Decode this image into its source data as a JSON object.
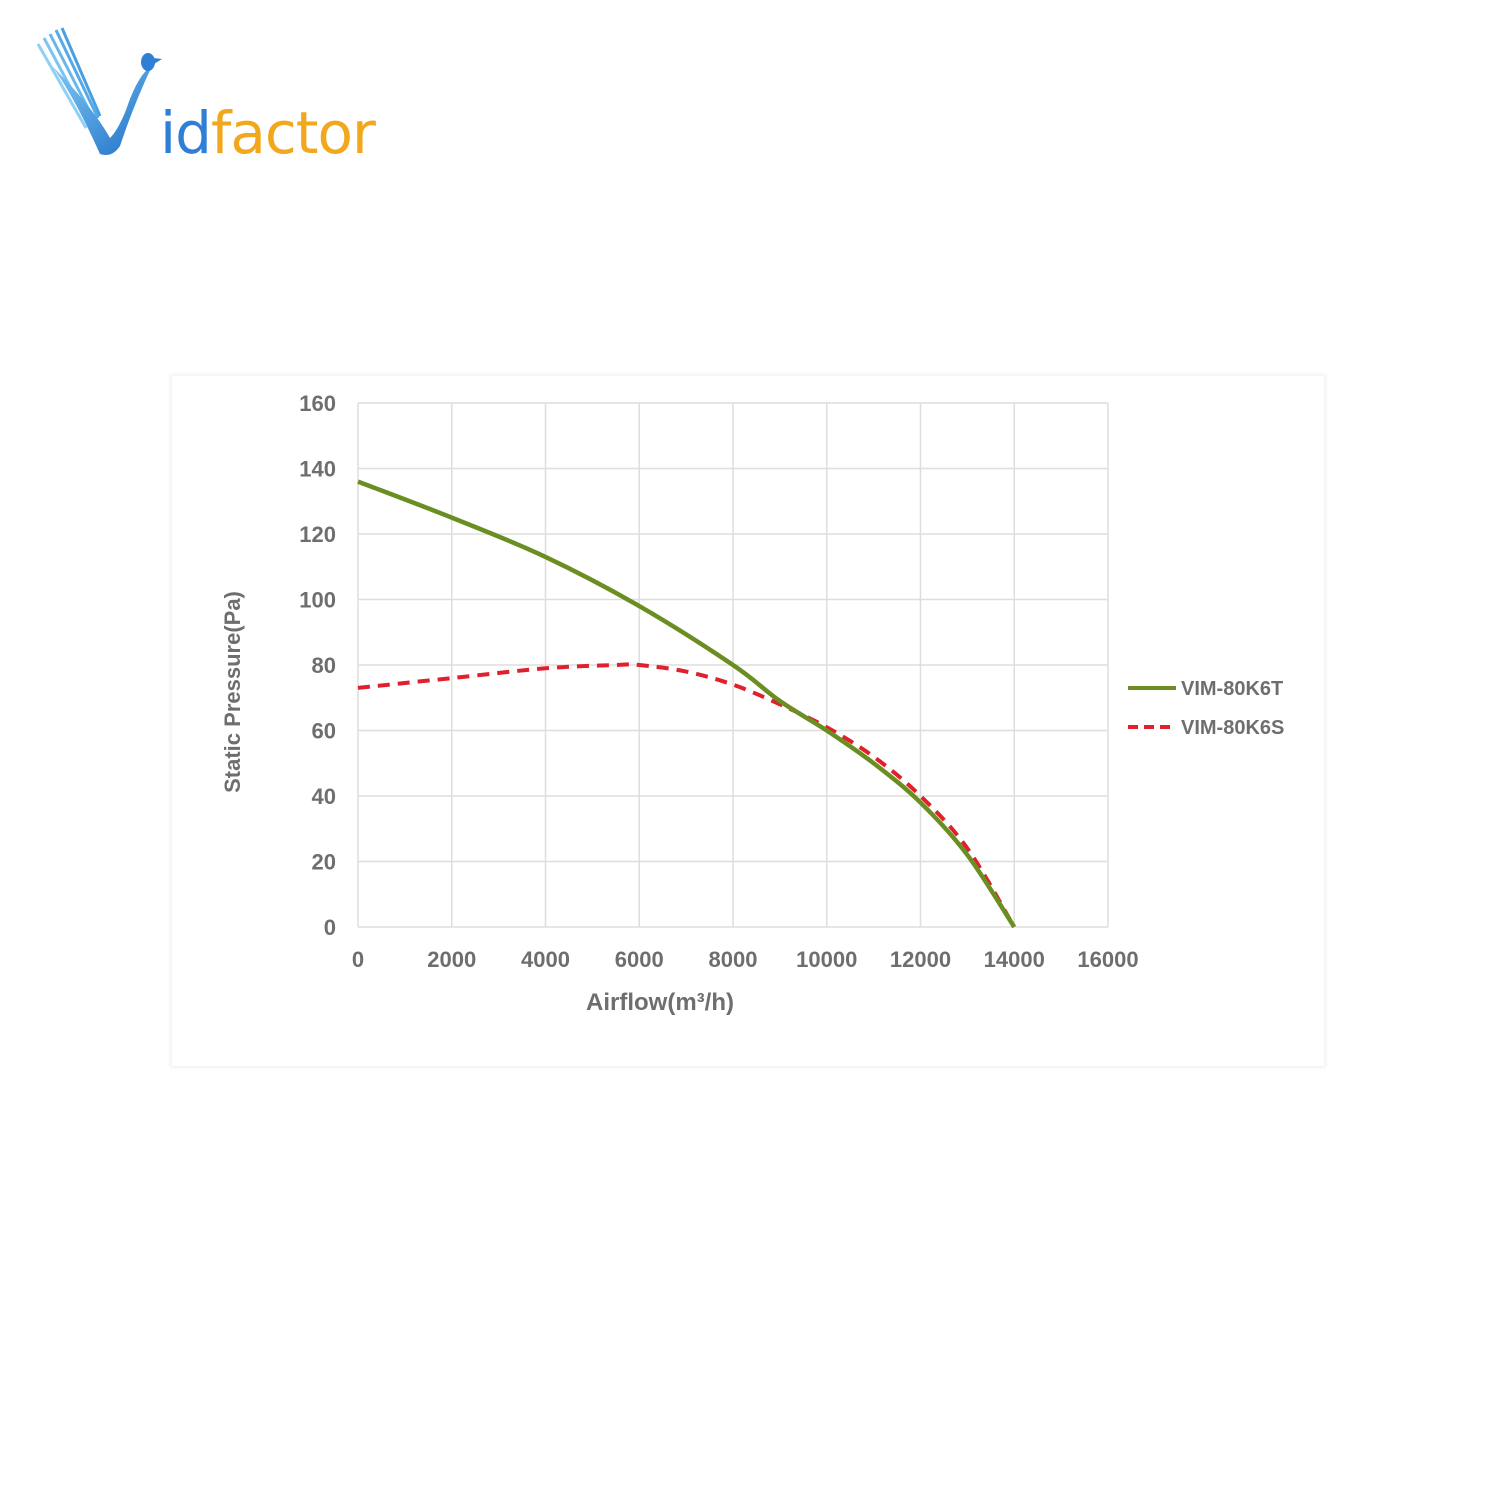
{
  "brand": {
    "name_part1": "id",
    "name_part2": "factor",
    "logo_letter": "V",
    "colors": {
      "blue": "#2f7fd6",
      "orange": "#f2a81d"
    }
  },
  "chart_data": {
    "type": "line",
    "xlabel": "Airflow(m³/h)",
    "ylabel": "Static Pressure(Pa)",
    "xlim": [
      0,
      16000
    ],
    "ylim": [
      0,
      160
    ],
    "xticks": [
      0,
      2000,
      4000,
      6000,
      8000,
      10000,
      12000,
      14000,
      16000
    ],
    "yticks": [
      0,
      20,
      40,
      60,
      80,
      100,
      120,
      140,
      160
    ],
    "grid": true,
    "legend_position": "right",
    "series": [
      {
        "name": "VIM-80K6T",
        "color": "#6b8e23",
        "style": "solid",
        "x": [
          0,
          2000,
          4000,
          6000,
          8000,
          9000,
          10000,
          11000,
          12000,
          13000,
          14000
        ],
        "y": [
          136,
          125,
          113,
          98,
          80,
          69,
          60,
          50,
          38,
          22,
          0
        ]
      },
      {
        "name": "VIM-80K6S",
        "color": "#e0202a",
        "style": "dashed",
        "x": [
          0,
          2000,
          4000,
          5500,
          6000,
          7000,
          8000,
          9000,
          10000,
          11000,
          12000,
          13000,
          14000
        ],
        "y": [
          73,
          76,
          79,
          80,
          80,
          78,
          74,
          68,
          61,
          52,
          40,
          24,
          0
        ]
      }
    ]
  }
}
